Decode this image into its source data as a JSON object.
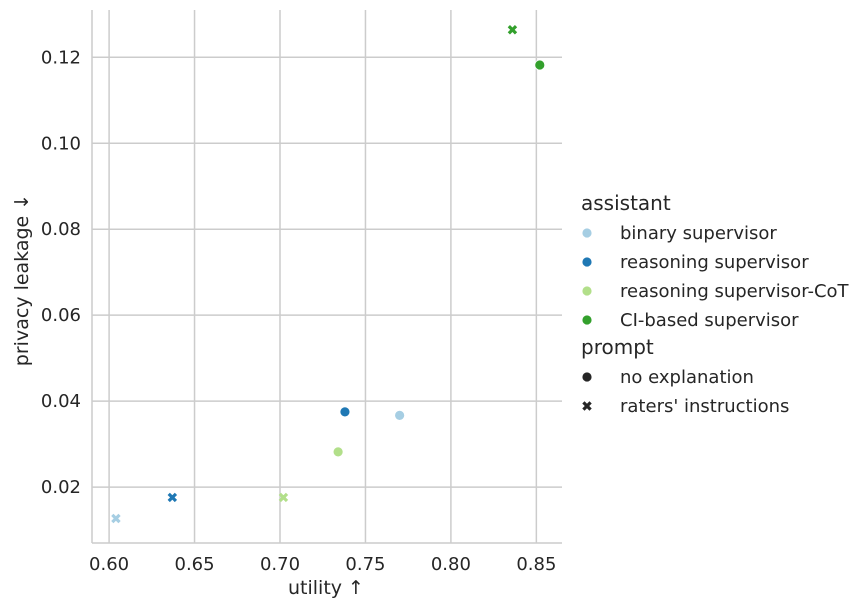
{
  "chart_data": {
    "type": "scatter",
    "xlabel": "utility ↑",
    "ylabel": "privacy leakage ↓",
    "xlim": [
      0.59,
      0.865
    ],
    "ylim": [
      0.007,
      0.131
    ],
    "xticks": [
      0.6,
      0.65,
      0.7,
      0.75,
      0.8,
      0.85
    ],
    "yticks": [
      0.02,
      0.04,
      0.06,
      0.08,
      0.1,
      0.12
    ],
    "xtick_labels": [
      "0.60",
      "0.65",
      "0.70",
      "0.75",
      "0.80",
      "0.85"
    ],
    "ytick_labels": [
      "0.02",
      "0.04",
      "0.06",
      "0.08",
      "0.10",
      "0.12"
    ],
    "grid": true,
    "legend_position": "right",
    "legend": {
      "assistant_title": "assistant",
      "assistant": [
        {
          "label": "binary supervisor",
          "color": "#a6cee3"
        },
        {
          "label": "reasoning supervisor",
          "color": "#1f78b4"
        },
        {
          "label": "reasoning supervisor-CoT",
          "color": "#b2df8a"
        },
        {
          "label": "CI-based supervisor",
          "color": "#33a02c"
        }
      ],
      "prompt_title": "prompt",
      "prompt": [
        {
          "label": "no explanation",
          "marker": "circle"
        },
        {
          "label": "raters' instructions",
          "marker": "cross"
        }
      ]
    },
    "points": [
      {
        "assistant": "binary supervisor",
        "prompt": "no explanation",
        "x": 0.77,
        "y": 0.0367
      },
      {
        "assistant": "binary supervisor",
        "prompt": "raters' instructions",
        "x": 0.604,
        "y": 0.0127
      },
      {
        "assistant": "reasoning supervisor",
        "prompt": "no explanation",
        "x": 0.738,
        "y": 0.0375
      },
      {
        "assistant": "reasoning supervisor",
        "prompt": "raters' instructions",
        "x": 0.637,
        "y": 0.0176
      },
      {
        "assistant": "reasoning supervisor-CoT",
        "prompt": "no explanation",
        "x": 0.734,
        "y": 0.0282
      },
      {
        "assistant": "reasoning supervisor-CoT",
        "prompt": "raters' instructions",
        "x": 0.702,
        "y": 0.0176
      },
      {
        "assistant": "CI-based supervisor",
        "prompt": "no explanation",
        "x": 0.852,
        "y": 0.1182
      },
      {
        "assistant": "CI-based supervisor",
        "prompt": "raters' instructions",
        "x": 0.836,
        "y": 0.1264
      }
    ]
  }
}
